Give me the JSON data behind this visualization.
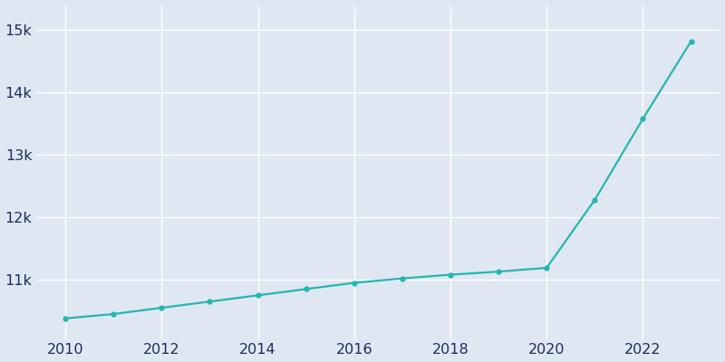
{
  "years": [
    2010,
    2011,
    2012,
    2013,
    2014,
    2015,
    2016,
    2017,
    2018,
    2019,
    2020,
    2021,
    2022,
    2023
  ],
  "population": [
    10380,
    10450,
    10550,
    10650,
    10750,
    10850,
    10950,
    11020,
    11080,
    11130,
    11190,
    12280,
    13580,
    14820
  ],
  "line_color": "#26b5b0",
  "marker": "o",
  "marker_size": 3.5,
  "line_width": 1.6,
  "bg_color": "#dfe8f2",
  "grid_color": "#ffffff",
  "tick_color": "#1c2d5e",
  "xlim": [
    2009.4,
    2023.6
  ],
  "ylim": [
    10050,
    15400
  ],
  "xticks": [
    2010,
    2012,
    2014,
    2016,
    2018,
    2020,
    2022
  ],
  "yticks": [
    11000,
    12000,
    13000,
    14000,
    15000
  ],
  "ytick_labels": [
    "11k",
    "12k",
    "13k",
    "14k",
    "15k"
  ],
  "tick_fontsize": 11.5,
  "figwidth": 8.0,
  "figheight": 4.0,
  "dpi": 100
}
